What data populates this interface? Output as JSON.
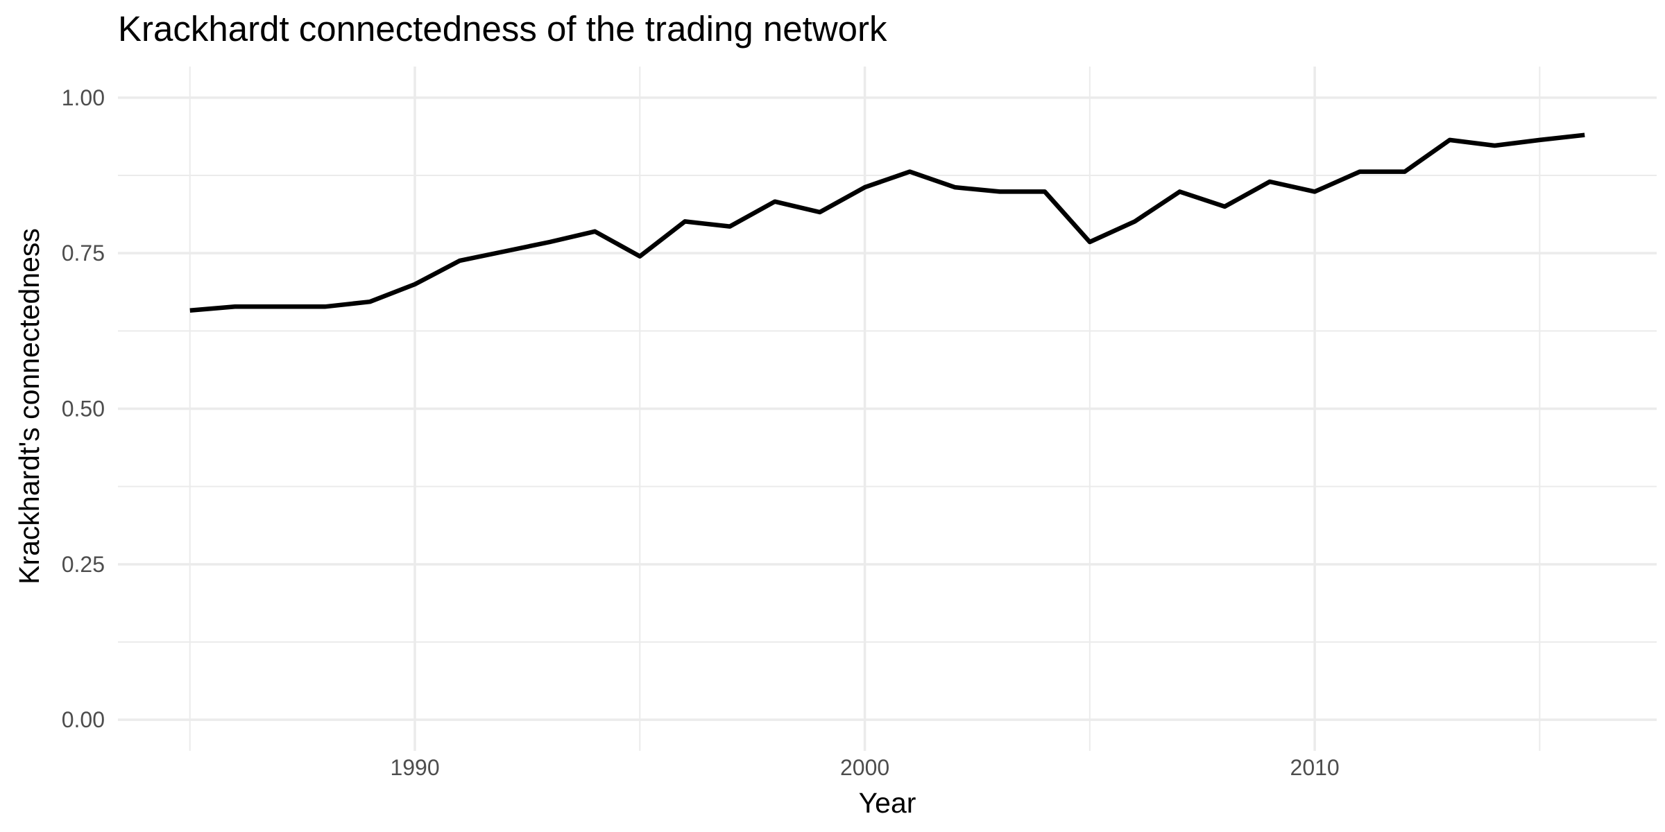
{
  "chart_data": {
    "type": "line",
    "title": "Krackhardt connectedness of the trading network",
    "xlabel": "Year",
    "ylabel": "Krackhardt's connectedness",
    "xlim": [
      1983.4,
      2017.6
    ],
    "ylim": [
      -0.05,
      1.05
    ],
    "x_ticks": [
      1990,
      2000,
      2010
    ],
    "y_ticks": [
      0.0,
      0.25,
      0.5,
      0.75,
      1.0
    ],
    "y_tick_labels": [
      "0.00",
      "0.25",
      "0.50",
      "0.75",
      "1.00"
    ],
    "grid": true,
    "line_color": "#000000",
    "series": [
      {
        "x": [
          1985,
          1986,
          1987,
          1988,
          1989,
          1990,
          1991,
          1992,
          1993,
          1994,
          1995,
          1996,
          1997,
          1998,
          1999,
          2000,
          2001,
          2002,
          2003,
          2004,
          2005,
          2006,
          2007,
          2008,
          2009,
          2010,
          2011,
          2012,
          2013,
          2014,
          2015,
          2016
        ],
        "values": [
          0.658,
          0.664,
          0.664,
          0.664,
          0.672,
          0.7,
          0.738,
          0.753,
          0.768,
          0.785,
          0.745,
          0.801,
          0.793,
          0.833,
          0.816,
          0.856,
          0.881,
          0.856,
          0.849,
          0.849,
          0.768,
          0.801,
          0.849,
          0.825,
          0.865,
          0.849,
          0.881,
          0.881,
          0.932,
          0.923,
          0.932,
          0.94
        ]
      }
    ]
  }
}
